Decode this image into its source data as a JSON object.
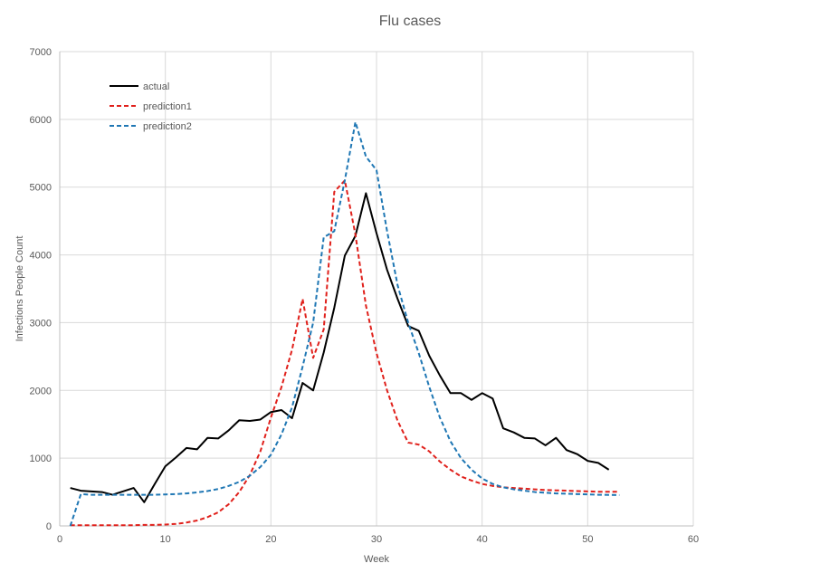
{
  "chart_data": {
    "type": "line",
    "title": "Flu cases",
    "xlabel": "Week",
    "ylabel": "Infections People Count",
    "xlim": [
      0,
      60
    ],
    "ylim": [
      0,
      7000
    ],
    "xticks": [
      0,
      10,
      20,
      30,
      40,
      50,
      60
    ],
    "yticks": [
      0,
      1000,
      2000,
      3000,
      4000,
      5000,
      6000,
      7000
    ],
    "grid": true,
    "legend_position": "top-left",
    "series": [
      {
        "name": "actual",
        "color": "#000000",
        "dash": "solid",
        "x": [
          1,
          2,
          3,
          4,
          5,
          6,
          7,
          8,
          9,
          10,
          11,
          12,
          13,
          14,
          15,
          16,
          17,
          18,
          19,
          20,
          21,
          22,
          23,
          24,
          25,
          26,
          27,
          28,
          29,
          30,
          31,
          32,
          33,
          34,
          35,
          36,
          37,
          38,
          39,
          40,
          41,
          42,
          43,
          44,
          45,
          46,
          47,
          48,
          49,
          50,
          51,
          52
        ],
        "values": [
          560,
          520,
          510,
          500,
          460,
          510,
          560,
          350,
          620,
          880,
          1010,
          1150,
          1130,
          1300,
          1290,
          1410,
          1560,
          1550,
          1570,
          1680,
          1710,
          1590,
          2110,
          2000,
          2560,
          3220,
          3990,
          4280,
          4910,
          4320,
          3780,
          3350,
          2950,
          2880,
          2510,
          2220,
          1960,
          1960,
          1860,
          1960,
          1880,
          1440,
          1380,
          1300,
          1290,
          1190,
          1300,
          1120,
          1060,
          960,
          930,
          830
        ]
      },
      {
        "name": "prediction1",
        "color": "#e0201b",
        "dash": "dashed",
        "x": [
          1,
          2,
          3,
          4,
          5,
          6,
          7,
          8,
          9,
          10,
          11,
          12,
          13,
          14,
          15,
          16,
          17,
          18,
          19,
          20,
          21,
          22,
          23,
          24,
          25,
          26,
          27,
          28,
          29,
          30,
          31,
          32,
          33,
          34,
          35,
          36,
          37,
          38,
          39,
          40,
          41,
          42,
          43,
          44,
          45,
          46,
          47,
          48,
          49,
          50,
          51,
          52,
          53
        ],
        "values": [
          10,
          10,
          10,
          10,
          10,
          10,
          10,
          15,
          15,
          20,
          30,
          50,
          80,
          130,
          200,
          320,
          500,
          750,
          1100,
          1600,
          2050,
          2600,
          3350,
          2480,
          2900,
          4930,
          5100,
          4300,
          3250,
          2550,
          2000,
          1550,
          1230,
          1200,
          1100,
          950,
          830,
          730,
          670,
          620,
          590,
          570,
          560,
          550,
          540,
          530,
          525,
          520,
          515,
          510,
          505,
          505,
          505
        ]
      },
      {
        "name": "prediction2",
        "color": "#1f77b4",
        "dash": "dashed",
        "x": [
          1,
          2,
          3,
          4,
          5,
          6,
          7,
          8,
          9,
          10,
          11,
          12,
          13,
          14,
          15,
          16,
          17,
          18,
          19,
          20,
          21,
          22,
          23,
          24,
          25,
          26,
          27,
          28,
          29,
          30,
          31,
          32,
          33,
          34,
          35,
          36,
          37,
          38,
          39,
          40,
          41,
          42,
          43,
          44,
          45,
          46,
          47,
          48,
          49,
          50,
          51,
          52,
          53
        ],
        "values": [
          0,
          470,
          460,
          460,
          460,
          460,
          460,
          460,
          460,
          465,
          470,
          480,
          495,
          515,
          545,
          590,
          650,
          740,
          870,
          1050,
          1350,
          1750,
          2350,
          3000,
          4260,
          4350,
          5100,
          5960,
          5450,
          5250,
          4350,
          3550,
          3000,
          2550,
          2050,
          1600,
          1250,
          1000,
          830,
          700,
          620,
          570,
          540,
          520,
          500,
          490,
          480,
          475,
          470,
          465,
          460,
          458,
          455
        ]
      }
    ]
  }
}
